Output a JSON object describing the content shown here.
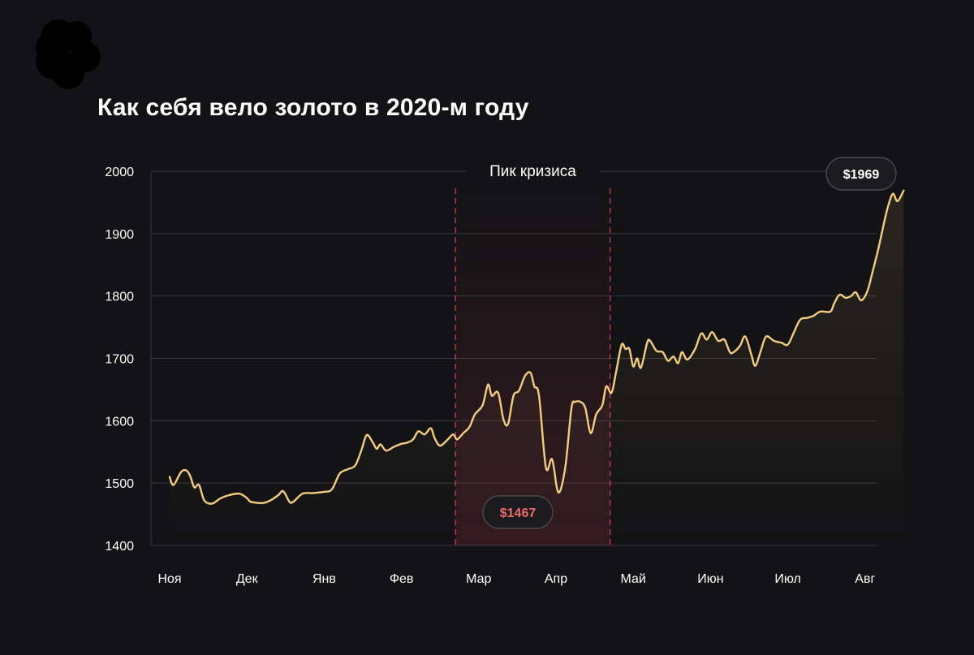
{
  "title": "Как себя вело золото в 2020-м году",
  "colors": {
    "background": "#131315",
    "line": "#f3cd7c",
    "grid": "#3a3a3d",
    "crisis_band": "#c0384f",
    "crisis_label_bg": "#131315",
    "min_label": "#ef6a6a"
  },
  "chart_data": {
    "type": "line",
    "title": "Как себя вело золото в 2020-м году",
    "xlabel": "",
    "ylabel": "",
    "ylim": [
      1400,
      2000
    ],
    "yticks": [
      1400,
      1500,
      1600,
      1700,
      1800,
      1900,
      2000
    ],
    "grid": true,
    "months": [
      "Ноя",
      "Дек",
      "Янв",
      "Фев",
      "Мар",
      "Апр",
      "Май",
      "Июн",
      "Июл",
      "Авг"
    ],
    "crisis": {
      "label": "Пик кризиса",
      "from_month_index": 3.7,
      "to_month_index": 5.7
    },
    "annotations": [
      {
        "label": "$1969",
        "value": 1969,
        "kind": "max"
      },
      {
        "label": "$1467",
        "value": 1467,
        "kind": "min"
      }
    ],
    "series": [
      {
        "points": [
          [
            0.0,
            1510
          ],
          [
            0.05,
            1497
          ],
          [
            0.15,
            1518
          ],
          [
            0.22,
            1520
          ],
          [
            0.27,
            1510
          ],
          [
            0.32,
            1493
          ],
          [
            0.38,
            1497
          ],
          [
            0.45,
            1472
          ],
          [
            0.55,
            1467
          ],
          [
            0.65,
            1475
          ],
          [
            0.75,
            1480
          ],
          [
            0.9,
            1483
          ],
          [
            1.0,
            1476
          ],
          [
            1.05,
            1470
          ],
          [
            1.2,
            1468
          ],
          [
            1.3,
            1472
          ],
          [
            1.4,
            1480
          ],
          [
            1.47,
            1487
          ],
          [
            1.55,
            1470
          ],
          [
            1.6,
            1470
          ],
          [
            1.72,
            1483
          ],
          [
            1.85,
            1484
          ],
          [
            2.0,
            1486
          ],
          [
            2.1,
            1490
          ],
          [
            2.2,
            1515
          ],
          [
            2.3,
            1522
          ],
          [
            2.4,
            1528
          ],
          [
            2.48,
            1552
          ],
          [
            2.55,
            1577
          ],
          [
            2.63,
            1565
          ],
          [
            2.68,
            1555
          ],
          [
            2.73,
            1562
          ],
          [
            2.8,
            1552
          ],
          [
            2.9,
            1558
          ],
          [
            3.0,
            1563
          ],
          [
            3.08,
            1565
          ],
          [
            3.15,
            1570
          ],
          [
            3.22,
            1583
          ],
          [
            3.3,
            1578
          ],
          [
            3.38,
            1588
          ],
          [
            3.43,
            1572
          ],
          [
            3.5,
            1560
          ],
          [
            3.6,
            1570
          ],
          [
            3.67,
            1578
          ],
          [
            3.72,
            1570
          ],
          [
            3.8,
            1580
          ],
          [
            3.88,
            1590
          ],
          [
            3.95,
            1610
          ],
          [
            4.05,
            1625
          ],
          [
            4.12,
            1658
          ],
          [
            4.17,
            1640
          ],
          [
            4.25,
            1645
          ],
          [
            4.32,
            1602
          ],
          [
            4.38,
            1595
          ],
          [
            4.45,
            1640
          ],
          [
            4.52,
            1648
          ],
          [
            4.6,
            1672
          ],
          [
            4.67,
            1677
          ],
          [
            4.72,
            1655
          ],
          [
            4.78,
            1640
          ],
          [
            4.87,
            1525
          ],
          [
            4.95,
            1538
          ],
          [
            5.03,
            1485
          ],
          [
            5.12,
            1525
          ],
          [
            5.2,
            1620
          ],
          [
            5.25,
            1630
          ],
          [
            5.32,
            1630
          ],
          [
            5.38,
            1620
          ],
          [
            5.45,
            1580
          ],
          [
            5.52,
            1610
          ],
          [
            5.6,
            1625
          ],
          [
            5.65,
            1655
          ],
          [
            5.72,
            1645
          ],
          [
            5.78,
            1680
          ],
          [
            5.85,
            1722
          ],
          [
            5.9,
            1715
          ],
          [
            5.95,
            1715
          ],
          [
            6.0,
            1687
          ],
          [
            6.05,
            1700
          ],
          [
            6.1,
            1685
          ],
          [
            6.18,
            1725
          ],
          [
            6.22,
            1728
          ],
          [
            6.3,
            1712
          ],
          [
            6.38,
            1710
          ],
          [
            6.45,
            1696
          ],
          [
            6.52,
            1703
          ],
          [
            6.58,
            1692
          ],
          [
            6.63,
            1710
          ],
          [
            6.7,
            1698
          ],
          [
            6.8,
            1715
          ],
          [
            6.88,
            1740
          ],
          [
            6.95,
            1730
          ],
          [
            7.02,
            1742
          ],
          [
            7.1,
            1728
          ],
          [
            7.18,
            1730
          ],
          [
            7.25,
            1710
          ],
          [
            7.3,
            1710
          ],
          [
            7.38,
            1720
          ],
          [
            7.45,
            1735
          ],
          [
            7.53,
            1705
          ],
          [
            7.58,
            1688
          ],
          [
            7.65,
            1712
          ],
          [
            7.72,
            1735
          ],
          [
            7.82,
            1728
          ],
          [
            7.92,
            1725
          ],
          [
            8.0,
            1722
          ],
          [
            8.08,
            1742
          ],
          [
            8.16,
            1762
          ],
          [
            8.25,
            1765
          ],
          [
            8.33,
            1768
          ],
          [
            8.42,
            1775
          ],
          [
            8.55,
            1775
          ],
          [
            8.6,
            1788
          ],
          [
            8.67,
            1802
          ],
          [
            8.75,
            1797
          ],
          [
            8.82,
            1800
          ],
          [
            8.88,
            1806
          ],
          [
            8.95,
            1793
          ],
          [
            9.03,
            1808
          ],
          [
            9.1,
            1840
          ],
          [
            9.18,
            1880
          ],
          [
            9.25,
            1920
          ],
          [
            9.3,
            1945
          ],
          [
            9.36,
            1964
          ],
          [
            9.42,
            1952
          ],
          [
            9.5,
            1969
          ]
        ]
      }
    ]
  }
}
